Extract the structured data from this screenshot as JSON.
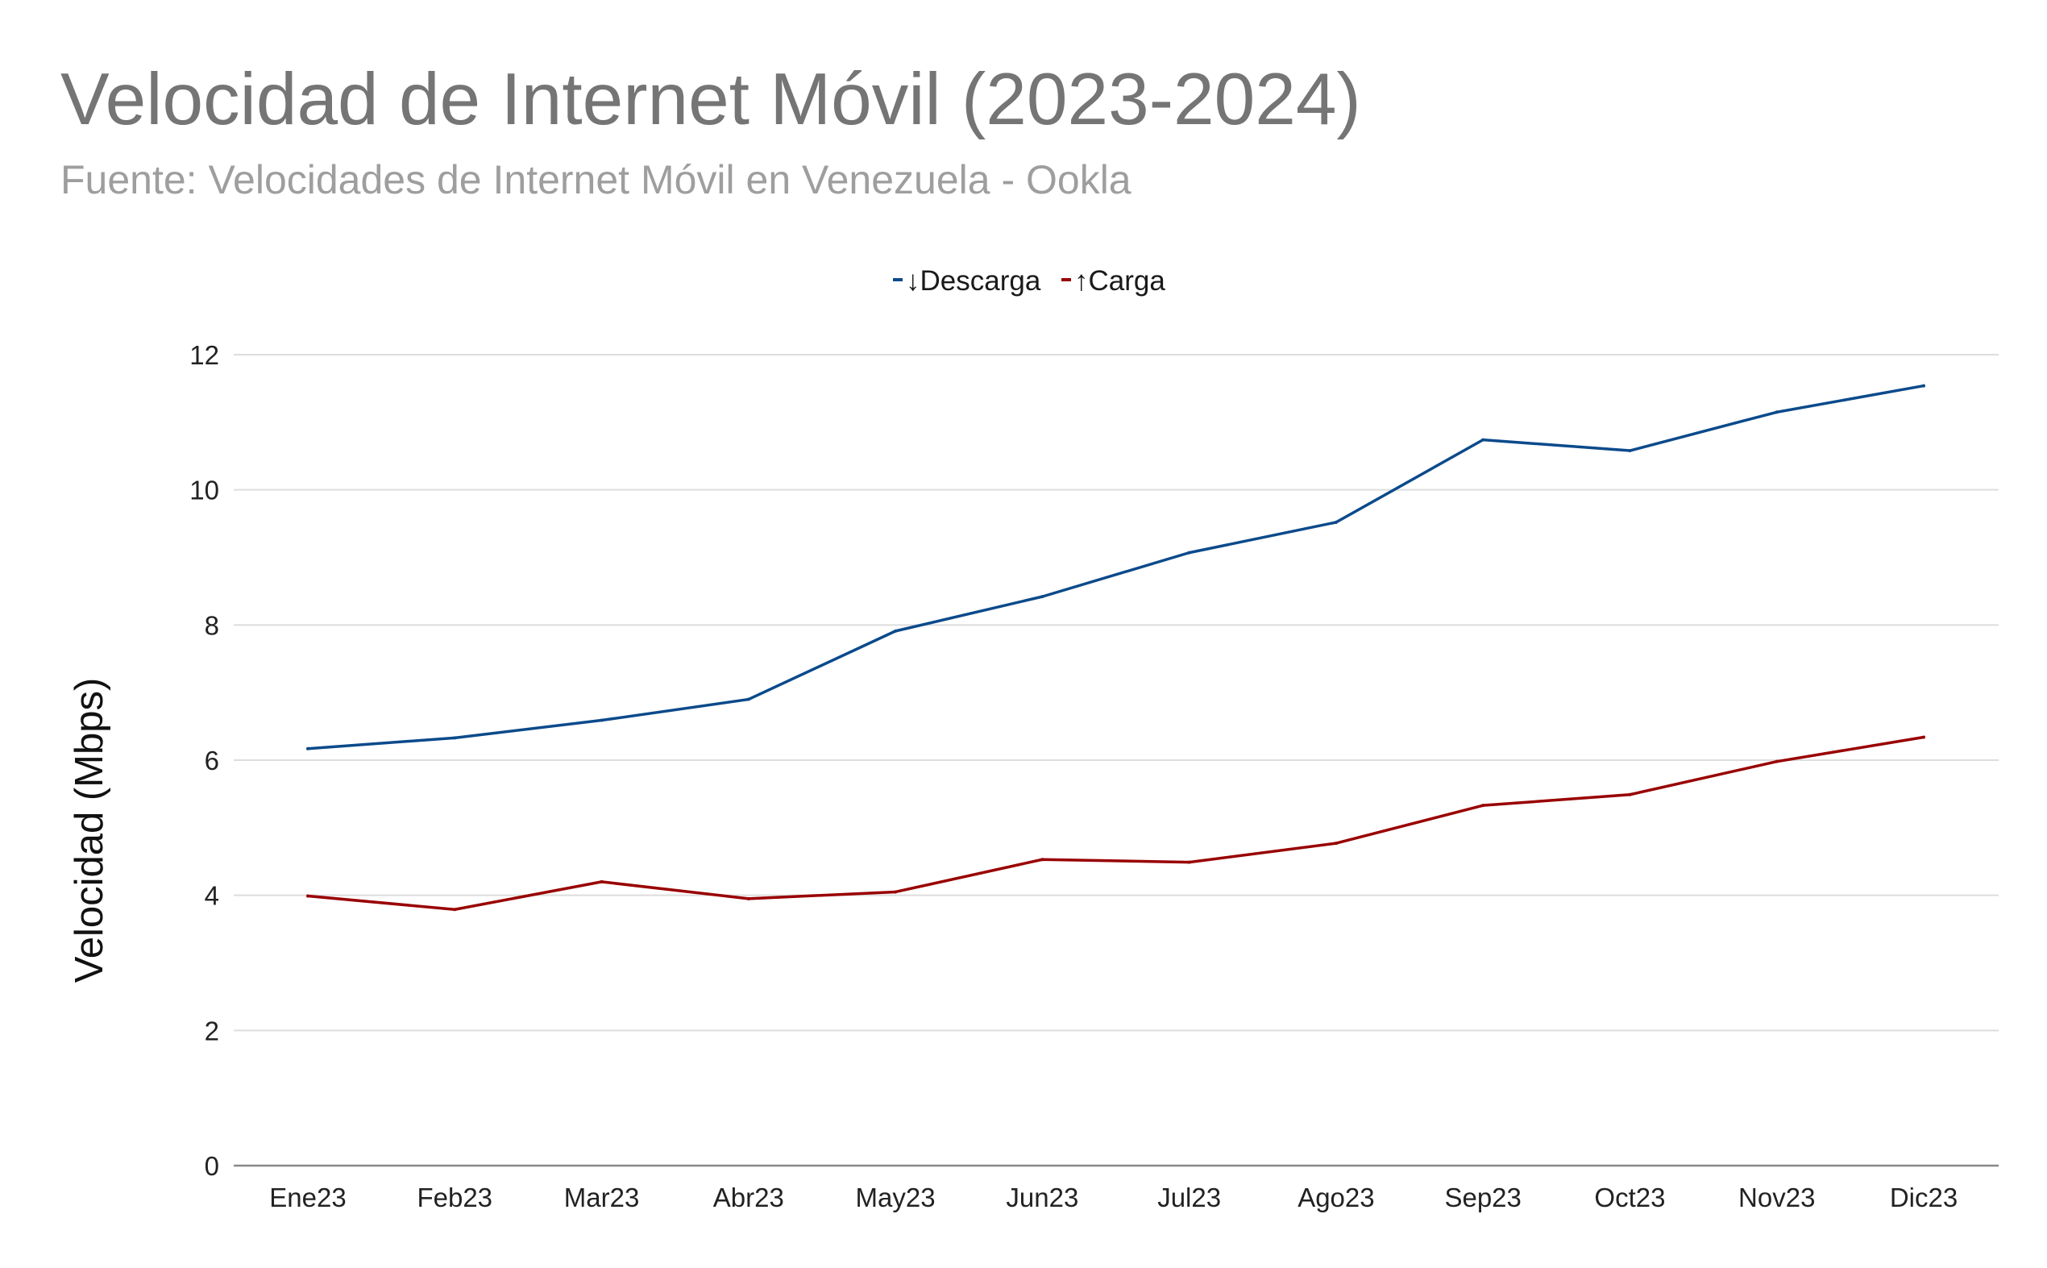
{
  "header": {
    "title": "Velocidad de Internet Móvil (2023-2024)",
    "subtitle": "Fuente: Velocidades de Internet Móvil en Venezuela - Ookla"
  },
  "colors": {
    "descarga": "#0b4a8b",
    "carga": "#990000",
    "grid": "#dddddd",
    "axis": "#888888"
  },
  "chart_data": {
    "type": "line",
    "title": "Velocidad de Internet Móvil (2023-2024)",
    "subtitle": "Fuente: Velocidades de Internet Móvil en Venezuela - Ookla",
    "xlabel": "",
    "ylabel": "Velocidad (Mbps)",
    "ylim": [
      0,
      12
    ],
    "yticks": [
      0,
      2,
      4,
      6,
      8,
      10,
      12
    ],
    "grid": true,
    "legend_position": "top",
    "categories": [
      "Ene23",
      "Feb23",
      "Mar23",
      "Abr23",
      "May23",
      "Jun23",
      "Jul23",
      "Ago23",
      "Sep23",
      "Oct23",
      "Nov23",
      "Dic23"
    ],
    "series": [
      {
        "name": "↓Descarga",
        "color": "#0b4a8b",
        "values": [
          6.17,
          6.33,
          6.59,
          6.9,
          7.91,
          8.42,
          9.07,
          9.52,
          10.74,
          10.58,
          11.15,
          11.54
        ]
      },
      {
        "name": "↑Carga",
        "color": "#990000",
        "values": [
          3.99,
          3.79,
          4.2,
          3.95,
          4.05,
          4.53,
          4.49,
          4.77,
          5.33,
          5.49,
          5.98,
          6.34
        ]
      }
    ]
  }
}
